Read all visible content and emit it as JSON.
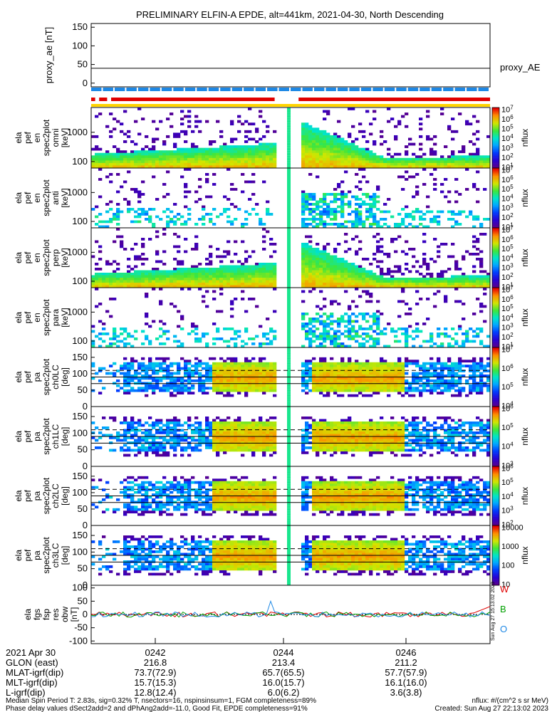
{
  "title": "PRELIMINARY ELFIN-A EPDE, alt=441km, 2021-04-30, North Descending",
  "colors": {
    "red": "#e00000",
    "blue": "#1e88e5",
    "yellow": "#ffd400",
    "green": "#00a000",
    "black": "#000000"
  },
  "chart_data": [
    {
      "type": "line",
      "name": "proxy_ae",
      "ylabel": "proxy_ae [nT]",
      "ylim": [
        -10,
        160
      ],
      "yticks": [
        0,
        50,
        100,
        150
      ],
      "legend": "proxy_AE",
      "reference_line": 40
    },
    {
      "type": "bar",
      "name": "status_bars",
      "segments": [
        {
          "color": "red",
          "x0": 0.0,
          "x1": 0.01
        },
        {
          "color": "red",
          "x0": 0.02,
          "x1": 0.04
        },
        {
          "color": "red",
          "x0": 0.05,
          "x1": 0.46
        },
        {
          "color": "red",
          "x0": 0.52,
          "x1": 1.0
        }
      ],
      "blue_range": [
        0.0,
        1.0
      ]
    },
    {
      "type": "heatmap",
      "name": "energy_spectrogram_1",
      "ylabel_lines": [
        "ela",
        "pef",
        "en",
        "spec2plot",
        "omni",
        "[keV]"
      ],
      "scale": "log",
      "ylim": [
        60,
        7000
      ],
      "yticks": [
        100,
        1000
      ],
      "colorbar": {
        "label": "nflux",
        "ticks": [
          "10^1",
          "10^2",
          "10^3",
          "10^4",
          "10^5",
          "10^6",
          "10^7"
        ]
      }
    },
    {
      "type": "heatmap",
      "name": "energy_spectrogram_2",
      "ylabel_lines": [
        "ela",
        "pef",
        "en",
        "spec2plot",
        "anti",
        "[keV]"
      ],
      "scale": "log",
      "ylim": [
        60,
        7000
      ],
      "yticks": [
        100,
        1000
      ],
      "colorbar": {
        "label": "nflux",
        "ticks": [
          "10^1",
          "10^2",
          "10^3",
          "10^4",
          "10^5",
          "10^6",
          "10^7"
        ]
      }
    },
    {
      "type": "heatmap",
      "name": "energy_spectrogram_3",
      "ylabel_lines": [
        "ela",
        "pef",
        "en",
        "spec2plot",
        "perp",
        "[keV]"
      ],
      "scale": "log",
      "ylim": [
        60,
        7000
      ],
      "yticks": [
        100,
        1000
      ],
      "colorbar": {
        "label": "nflux",
        "ticks": [
          "10^1",
          "10^2",
          "10^3",
          "10^4",
          "10^5",
          "10^6",
          "10^7"
        ]
      }
    },
    {
      "type": "heatmap",
      "name": "energy_spectrogram_4",
      "ylabel_lines": [
        "ela",
        "pef",
        "en",
        "spec2plot",
        "para",
        "[keV]"
      ],
      "scale": "log",
      "ylim": [
        60,
        7000
      ],
      "yticks": [
        100,
        1000
      ],
      "colorbar": {
        "label": "nflux",
        "ticks": [
          "10^1",
          "10^2",
          "10^3",
          "10^4",
          "10^5",
          "10^6",
          "10^7"
        ]
      }
    },
    {
      "type": "heatmap",
      "name": "pitch_angle_ch0",
      "ylabel_lines": [
        "ela",
        "pef",
        "pa",
        "spec2plot",
        "ch0LC",
        "[deg]"
      ],
      "ylim": [
        0,
        180
      ],
      "yticks": [
        0,
        50,
        100,
        150
      ],
      "colorbar": {
        "label": "nflux",
        "ticks": [
          "10^4",
          "10^5",
          "10^6",
          "10^7"
        ]
      }
    },
    {
      "type": "heatmap",
      "name": "pitch_angle_ch1",
      "ylabel_lines": [
        "ela",
        "pef",
        "pa",
        "spec2plot",
        "ch1LC",
        "[deg]"
      ],
      "ylim": [
        0,
        180
      ],
      "yticks": [
        0,
        50,
        100,
        150
      ],
      "colorbar": {
        "label": "nflux",
        "ticks": [
          "10^3",
          "10^4",
          "10^5",
          "10^6"
        ]
      }
    },
    {
      "type": "heatmap",
      "name": "pitch_angle_ch2",
      "ylabel_lines": [
        "ela",
        "pef",
        "pa",
        "spec2plot",
        "ch2LC",
        "[deg]"
      ],
      "ylim": [
        0,
        180
      ],
      "yticks": [
        0,
        50,
        100,
        150
      ],
      "colorbar": {
        "label": "nflux",
        "ticks": [
          "10^2",
          "10^3",
          "10^4",
          "10^5",
          "10^6"
        ]
      }
    },
    {
      "type": "heatmap",
      "name": "pitch_angle_ch3",
      "ylabel_lines": [
        "ela",
        "pef",
        "pa",
        "spec2plot",
        "ch3LC",
        "[deg]"
      ],
      "ylim": [
        0,
        180
      ],
      "yticks": [
        0,
        50,
        100,
        150
      ],
      "colorbar": {
        "label": "nflux",
        "ticks": [
          "10",
          "100",
          "1000",
          "10000"
        ]
      }
    },
    {
      "type": "line",
      "name": "fgs_residuals",
      "ylabel_lines": [
        "ela",
        "fgs",
        "fsp",
        "res",
        "obw",
        "[nT]"
      ],
      "ylim": [
        -110,
        110
      ],
      "yticks": [
        -100,
        -50,
        0,
        50,
        100
      ],
      "series": [
        {
          "name": "W",
          "color": "red"
        },
        {
          "name": "B",
          "color": "green"
        },
        {
          "name": "O",
          "color": "blue"
        }
      ]
    }
  ],
  "x_axis": {
    "date_label": "2021 Apr 30",
    "tick_labels": [
      "0242",
      "0244",
      "0246"
    ],
    "rows": [
      {
        "label": "GLON (east)",
        "values": [
          "216.8",
          "213.4",
          "211.2"
        ]
      },
      {
        "label": "MLAT-igrf(dip)",
        "values": [
          "73.7(72.9)",
          "65.7(65.5)",
          "57.7(57.9)"
        ]
      },
      {
        "label": "MLT-igrf(dip)",
        "values": [
          "15.7(15.3)",
          "16.0(15.7)",
          "16.1(16.0)"
        ]
      },
      {
        "label": "L-igrf(dip)",
        "values": [
          "12.8(12.4)",
          "6.0(6.2)",
          "3.6(3.8)"
        ]
      }
    ]
  },
  "footer": {
    "line1": "Median Spin Period T: 2.83s, sig=0.32% T, nsectors=16, nspinsinsum=1, FGM completeness=89%",
    "line2": "Phase delay values dSect2add=2 and dPhAng2add=-11.0, Good Fit, EPDE completeness=91%",
    "nflux_units": "nflux: #/(cm^2 s sr MeV)",
    "created": "Created: Sun Aug 27 22:13:02 2023",
    "vertical_stamp": "Sun Aug 27 15:13:02 2023"
  }
}
